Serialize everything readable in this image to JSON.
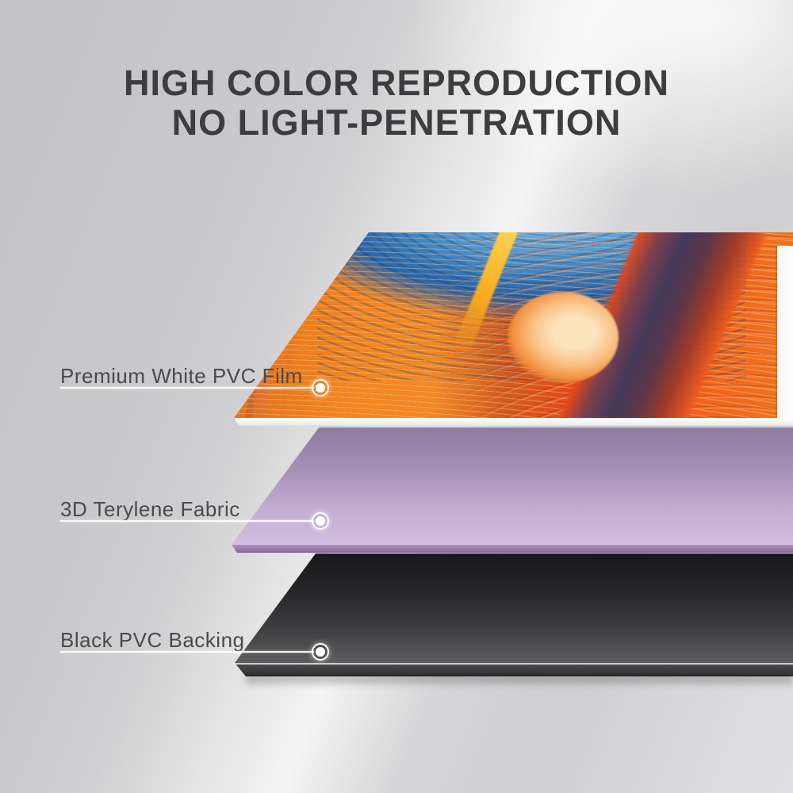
{
  "title": {
    "line1": "HIGH COLOR REPRODUCTION",
    "line2": "NO LIGHT-PENETRATION"
  },
  "annotations": [
    {
      "label": "Premium White PVC Film"
    },
    {
      "label": "3D Terylene Fabric"
    },
    {
      "label": "Black PVC Backing"
    }
  ],
  "colors": {
    "background_base": "#cccccd",
    "background_highlight": "#f4f4f5",
    "title_text": "#3d3d3f",
    "label_text": "#4a4a4c",
    "callout_line": "#ffffff",
    "film_edge_white": "#f7f7f7",
    "film_art_orange": "#f6871f",
    "film_art_magenta": "#c13b8e",
    "film_art_blue": "#4a94d0",
    "film_art_red": "#e84517",
    "fabric_top": "#8d7b9e",
    "fabric_bottom": "#d2bee0",
    "fabric_edge": "#a585b3",
    "backing_top": "#18181a",
    "backing_bottom": "#5e5e60"
  }
}
